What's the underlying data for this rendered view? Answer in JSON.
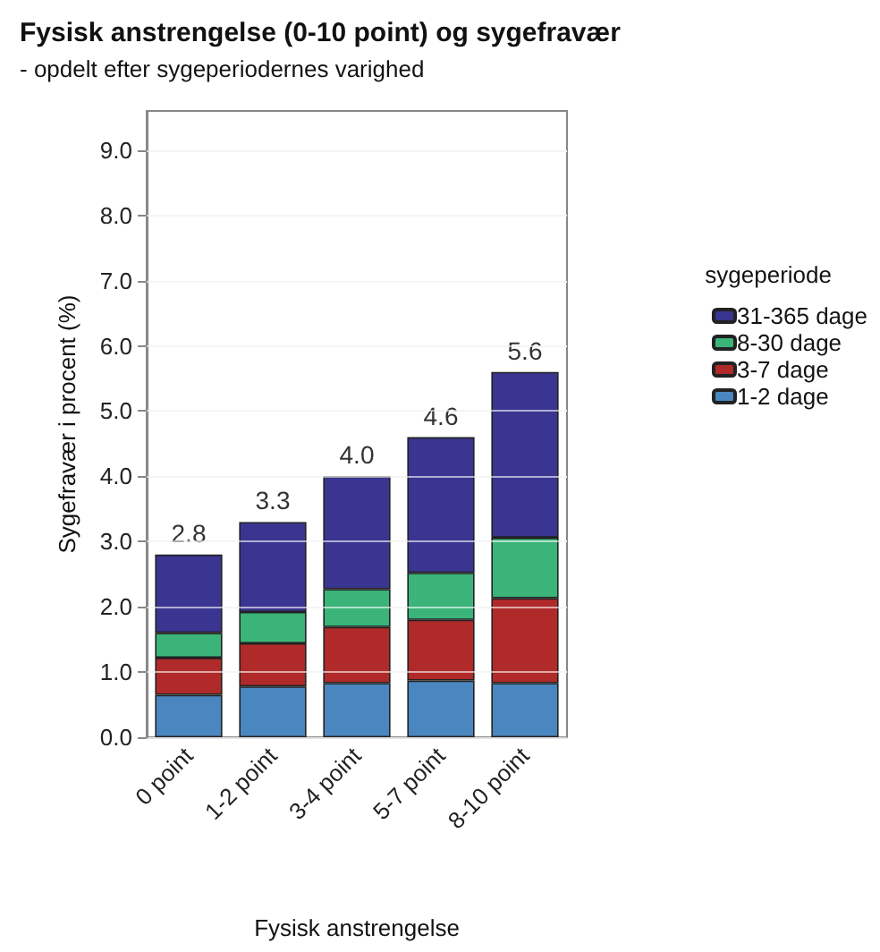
{
  "chart_data": {
    "type": "bar",
    "title": "Fysisk anstrengelse (0-10 point) og sygefravær",
    "subtitle": "- opdelt efter sygeperiodernes varighed",
    "xlabel": "Fysisk anstrengelse",
    "ylabel": "Sygefravær i procent (%)",
    "legend_title": "sygeperiode",
    "categories": [
      "0 point",
      "1-2 point",
      "3-4 point",
      "5-7 point",
      "8-10 point"
    ],
    "series": [
      {
        "name": "1-2 dage",
        "color": "#4a86c0",
        "values": [
          0.65,
          0.78,
          0.83,
          0.87,
          0.83
        ]
      },
      {
        "name": "3-7 dage",
        "color": "#b02a2a",
        "values": [
          0.57,
          0.66,
          0.86,
          0.93,
          1.3
        ]
      },
      {
        "name": "8-30 dage",
        "color": "#3bb47a",
        "values": [
          0.38,
          0.48,
          0.58,
          0.72,
          0.93
        ]
      },
      {
        "name": "31-365 dage",
        "color": "#3b3592",
        "values": [
          1.2,
          1.38,
          1.73,
          2.08,
          2.54
        ]
      }
    ],
    "stacked": true,
    "totals": [
      "2.8",
      "3.3",
      "4.0",
      "4.6",
      "5.6"
    ],
    "ylim": [
      0,
      9.6
    ],
    "yticks": [
      {
        "value": 0,
        "label": "0.0"
      },
      {
        "value": 1,
        "label": "1.0"
      },
      {
        "value": 2,
        "label": "2.0"
      },
      {
        "value": 3,
        "label": "3.0"
      },
      {
        "value": 4,
        "label": "4.0"
      },
      {
        "value": 5,
        "label": "5.0"
      },
      {
        "value": 6,
        "label": "6.0"
      },
      {
        "value": 7,
        "label": "7.0"
      },
      {
        "value": 8,
        "label": "8.0"
      },
      {
        "value": 9,
        "label": "9.0"
      }
    ],
    "grid": true,
    "legend": "right"
  }
}
